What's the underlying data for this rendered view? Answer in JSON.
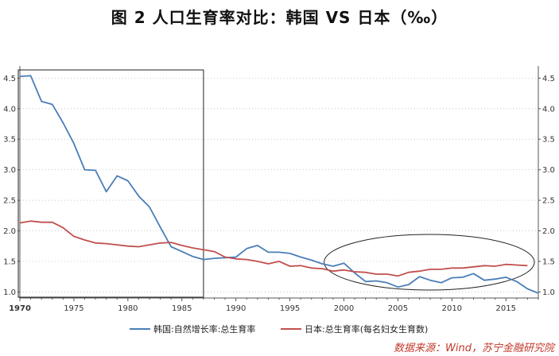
{
  "chart_data": {
    "type": "line",
    "title": "图 2   人口生育率对比：韩国 VS 日本（‰）",
    "xlim": [
      1970,
      2018
    ],
    "ylim": [
      0.9,
      4.7
    ],
    "x_ticks": [
      1970,
      1975,
      1980,
      1985,
      1990,
      1995,
      2000,
      2005,
      2010,
      2015
    ],
    "y_ticks": [
      1.0,
      1.5,
      2.0,
      2.5,
      3.0,
      3.5,
      4.0,
      4.5
    ],
    "y_tick_labels": [
      "1.0",
      "1.5",
      "2.0",
      "2.5",
      "3.0",
      "3.5",
      "4.0",
      "4.5"
    ],
    "series": [
      {
        "name": "韩国:自然增长率:总生育率",
        "color": "#4a7eb8",
        "x": [
          1970,
          1971,
          1972,
          1973,
          1974,
          1975,
          1976,
          1977,
          1978,
          1979,
          1980,
          1981,
          1982,
          1983,
          1984,
          1985,
          1986,
          1987,
          1988,
          1989,
          1990,
          1991,
          1992,
          1993,
          1994,
          1995,
          1996,
          1997,
          1998,
          1999,
          2000,
          2001,
          2002,
          2003,
          2004,
          2005,
          2006,
          2007,
          2008,
          2009,
          2010,
          2011,
          2012,
          2013,
          2014,
          2015,
          2016,
          2017,
          2018
        ],
        "values": [
          4.53,
          4.54,
          4.12,
          4.07,
          3.77,
          3.43,
          3.0,
          2.99,
          2.64,
          2.9,
          2.82,
          2.57,
          2.39,
          2.06,
          1.74,
          1.66,
          1.58,
          1.53,
          1.55,
          1.56,
          1.57,
          1.71,
          1.76,
          1.65,
          1.65,
          1.63,
          1.57,
          1.52,
          1.46,
          1.42,
          1.47,
          1.31,
          1.17,
          1.18,
          1.15,
          1.08,
          1.12,
          1.25,
          1.19,
          1.15,
          1.23,
          1.24,
          1.3,
          1.19,
          1.21,
          1.24,
          1.17,
          1.05,
          0.98
        ]
      },
      {
        "name": "日本:总生育率(每名妇女生育数)",
        "color": "#c0504d",
        "x": [
          1970,
          1971,
          1972,
          1973,
          1974,
          1975,
          1976,
          1977,
          1978,
          1979,
          1980,
          1981,
          1982,
          1983,
          1984,
          1985,
          1986,
          1987,
          1988,
          1989,
          1990,
          1991,
          1992,
          1993,
          1994,
          1995,
          1996,
          1997,
          1998,
          1999,
          2000,
          2001,
          2002,
          2003,
          2004,
          2005,
          2006,
          2007,
          2008,
          2009,
          2010,
          2011,
          2012,
          2013,
          2014,
          2015,
          2016,
          2017
        ],
        "values": [
          2.13,
          2.16,
          2.14,
          2.14,
          2.05,
          1.91,
          1.85,
          1.8,
          1.79,
          1.77,
          1.75,
          1.74,
          1.77,
          1.8,
          1.81,
          1.76,
          1.72,
          1.69,
          1.66,
          1.57,
          1.54,
          1.53,
          1.5,
          1.46,
          1.5,
          1.42,
          1.43,
          1.39,
          1.38,
          1.34,
          1.36,
          1.33,
          1.32,
          1.29,
          1.29,
          1.26,
          1.32,
          1.34,
          1.37,
          1.37,
          1.39,
          1.39,
          1.41,
          1.43,
          1.42,
          1.45,
          1.44,
          1.43
        ]
      }
    ]
  },
  "source_note": "数据来源：Wind，苏宁金融研究院"
}
